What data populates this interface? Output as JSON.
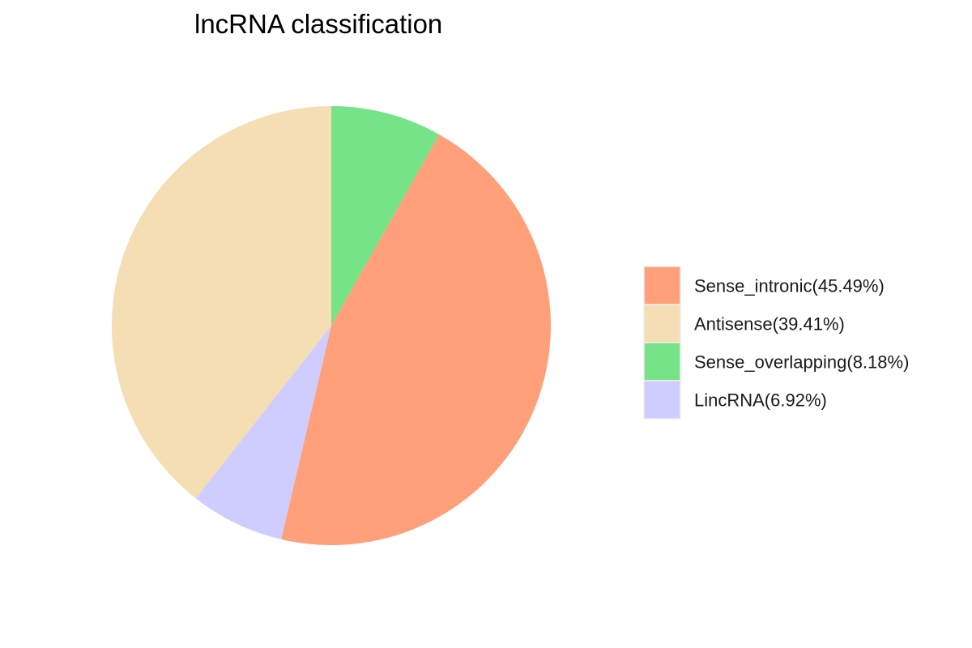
{
  "chart_data": {
    "type": "pie",
    "title": "lncRNA classification",
    "start_angle": "12 o'clock",
    "direction": "clockwise",
    "slice_order": [
      "Sense_overlapping",
      "Sense_intronic",
      "LincRNA",
      "Antisense"
    ],
    "slices": [
      {
        "name": "Sense_intronic",
        "value": 45.49,
        "color": "#FFA07A",
        "label": "Sense_intronic(45.49%)"
      },
      {
        "name": "Antisense",
        "value": 39.41,
        "color": "#F5DEB3",
        "label": "Antisense(39.41%)"
      },
      {
        "name": "Sense_overlapping",
        "value": 8.18,
        "color": "#76E388",
        "label": "Sense_overlapping(8.18%)"
      },
      {
        "name": "LincRNA",
        "value": 6.92,
        "color": "#CFCDFF",
        "label": "LincRNA(6.92%)"
      }
    ],
    "legend_position": "right"
  }
}
